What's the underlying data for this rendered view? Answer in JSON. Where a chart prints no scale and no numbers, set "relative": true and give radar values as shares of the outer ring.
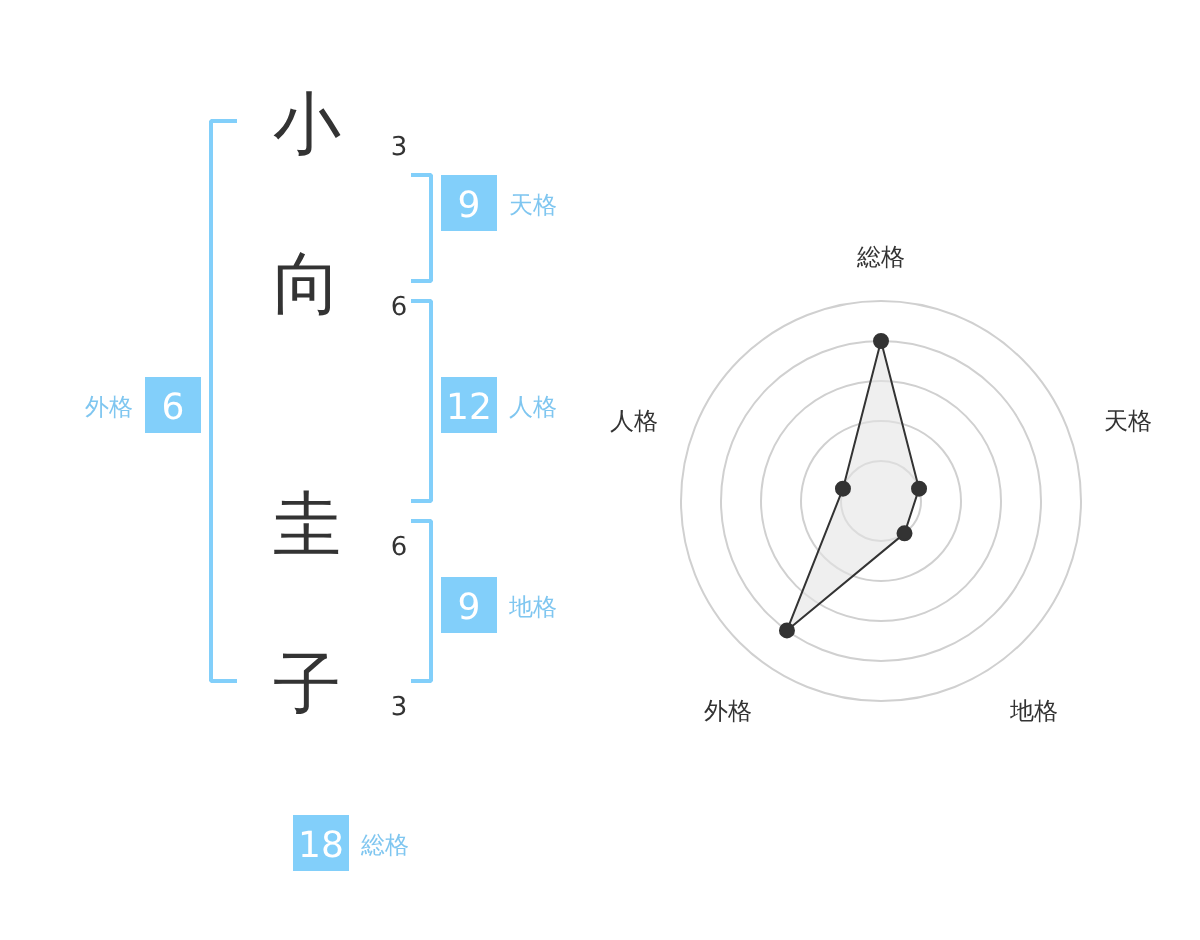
{
  "chart_data": [
    {
      "type": "other",
      "categories": [
        "小",
        "向",
        "圭",
        "子"
      ],
      "color": "#82cffa",
      "annotations": [
        "3",
        "6",
        "6",
        "3",
        "9",
        "天格",
        "12",
        "人格",
        "9",
        "地格",
        "6",
        "外格",
        "18",
        "総格"
      ]
    },
    {
      "type": "radar",
      "categories": [
        "総格",
        "天格",
        "地格",
        "外格",
        "人格"
      ],
      "relative": true,
      "grid": true,
      "marker": "circle",
      "series": [
        {
          "color": "#333333",
          "values": [
            0.8,
            0.2,
            0.2,
            0.8,
            0.2
          ]
        }
      ]
    }
  ]
}
